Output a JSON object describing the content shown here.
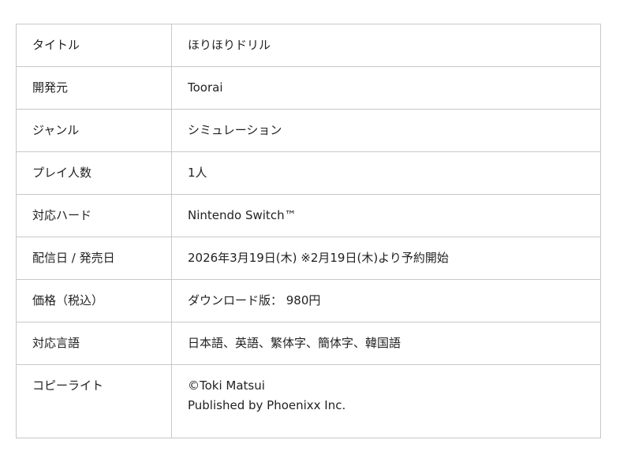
{
  "rows": [
    {
      "label": "タイトル",
      "value": "ほりほりドリル"
    },
    {
      "label": "開発元",
      "value": "Toorai"
    },
    {
      "label": "ジャンル",
      "value": "シミュレーション"
    },
    {
      "label": "プレイ人数",
      "value": "1人"
    },
    {
      "label": "対応ハード",
      "value": "Nintendo Switch™"
    },
    {
      "label": "配信日 / 発売日",
      "value": "2026年3月19日(木) ※2月19日(木)より予約開始"
    },
    {
      "label": "価格（税込）",
      "value": "ダウンロード版： 980円"
    },
    {
      "label": "対応言語",
      "value": "日本語、英語、繁体字、簡体字、韓国語"
    },
    {
      "label": "コピーライト",
      "value": "©Toki Matsui",
      "value2": "Published by Phoenixx Inc."
    }
  ]
}
